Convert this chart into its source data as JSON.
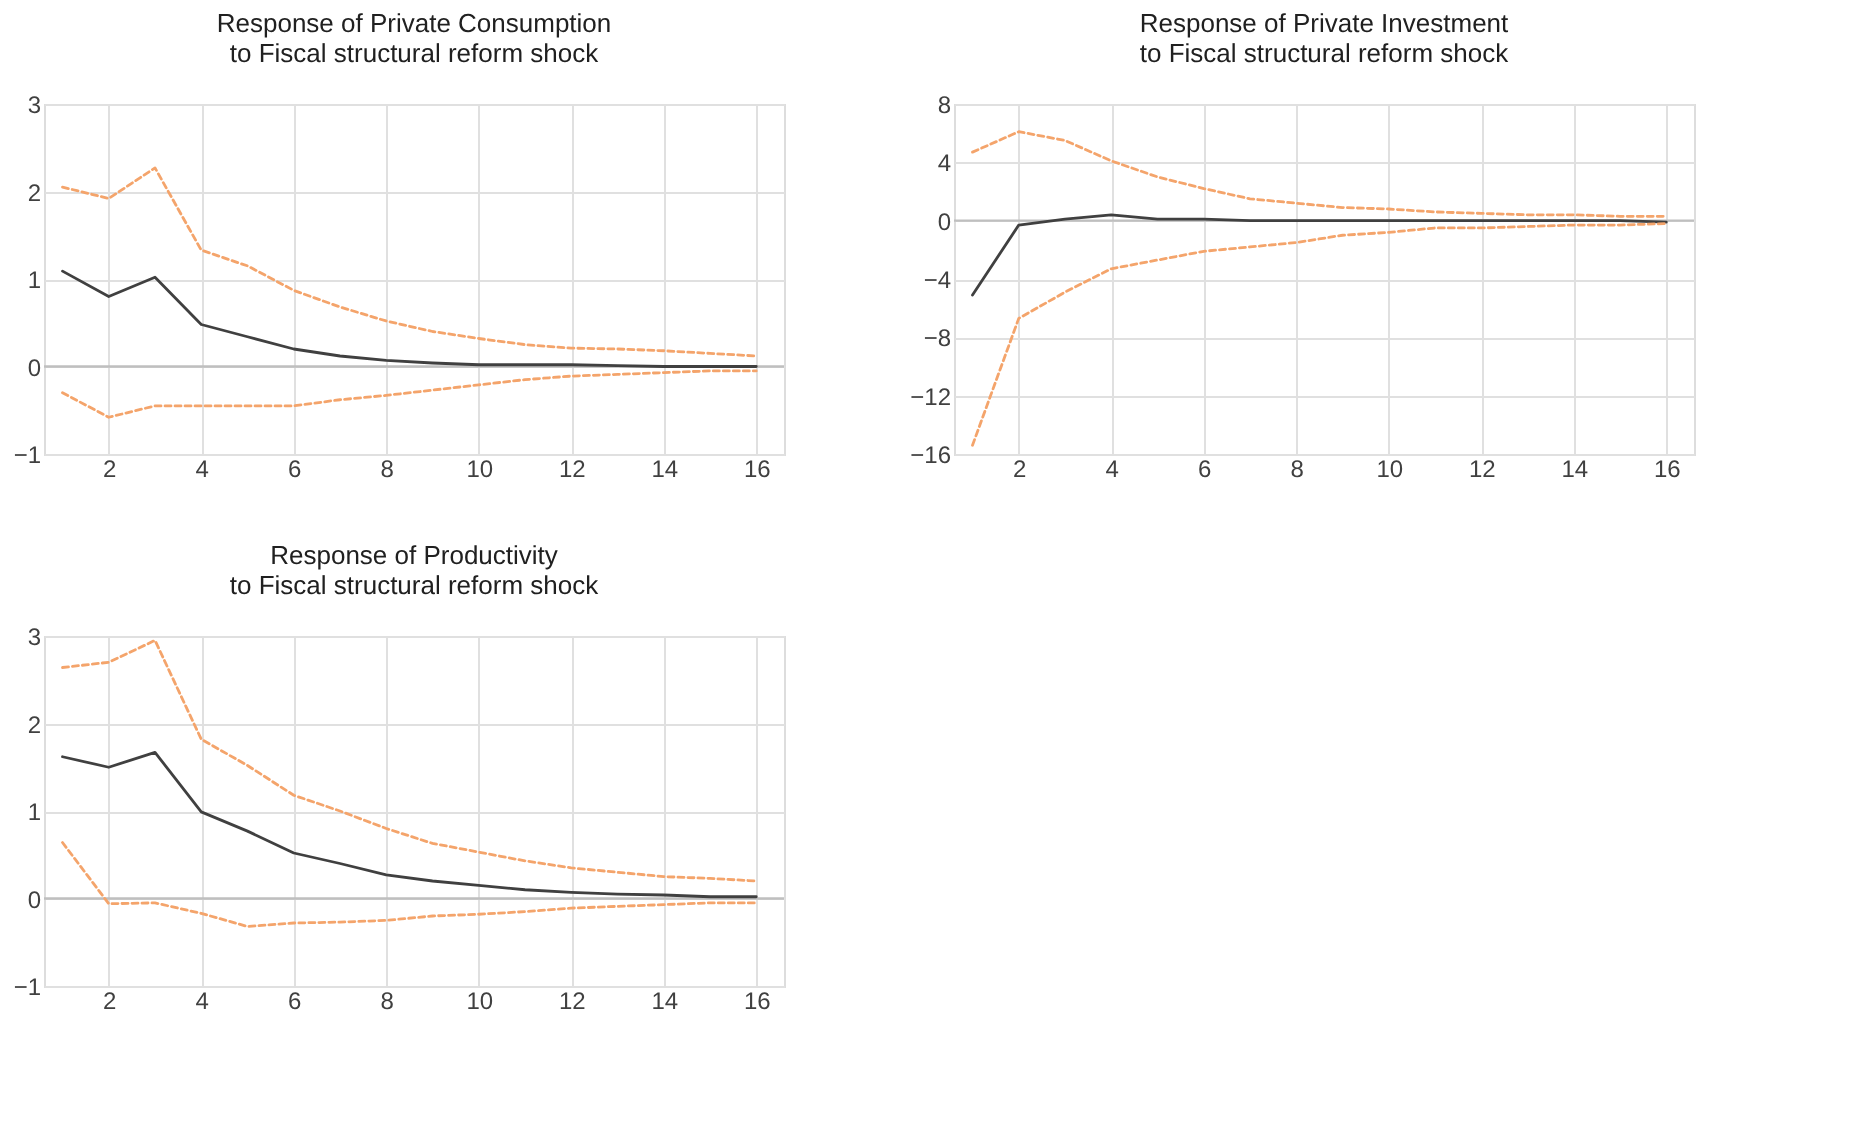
{
  "chart_data": [
    {
      "type": "line",
      "title": "Response of Private Consumption\nto Fiscal structural reform shock",
      "x": [
        1,
        2,
        3,
        4,
        5,
        6,
        7,
        8,
        9,
        10,
        11,
        12,
        13,
        14,
        15,
        16
      ],
      "xlim": [
        0.6,
        16.6
      ],
      "xticks": [
        2,
        4,
        6,
        8,
        10,
        12,
        14,
        16
      ],
      "ylim": [
        -1,
        3
      ],
      "yticks": [
        -1,
        0,
        1,
        2,
        3
      ],
      "grid": true,
      "marker": "none",
      "ref_lines": [
        {
          "axis": "y",
          "value": 0,
          "color": "#bfbfbf"
        }
      ],
      "series": [
        {
          "color": "#f4a46b",
          "line_style": "dashed",
          "values": [
            2.05,
            1.92,
            2.27,
            1.33,
            1.15,
            0.87,
            0.68,
            0.52,
            0.4,
            0.32,
            0.25,
            0.21,
            0.2,
            0.18,
            0.15,
            0.12
          ]
        },
        {
          "color": "#404040",
          "line_style": "solid",
          "values": [
            1.09,
            0.8,
            1.02,
            0.48,
            0.34,
            0.2,
            0.12,
            0.07,
            0.04,
            0.02,
            0.02,
            0.02,
            0.01,
            0.0,
            0.0,
            0.0
          ]
        },
        {
          "color": "#f4a46b",
          "line_style": "dashed",
          "values": [
            -0.3,
            -0.58,
            -0.45,
            -0.45,
            -0.45,
            -0.45,
            -0.38,
            -0.33,
            -0.27,
            -0.21,
            -0.15,
            -0.11,
            -0.09,
            -0.07,
            -0.05,
            -0.05
          ]
        }
      ]
    },
    {
      "type": "line",
      "title": "Response of Private Investment\nto Fiscal structural reform shock",
      "x": [
        1,
        2,
        3,
        4,
        5,
        6,
        7,
        8,
        9,
        10,
        11,
        12,
        13,
        14,
        15,
        16
      ],
      "xlim": [
        0.6,
        16.6
      ],
      "xticks": [
        2,
        4,
        6,
        8,
        10,
        12,
        14,
        16
      ],
      "ylim": [
        -16,
        8
      ],
      "yticks": [
        -16,
        -12,
        -8,
        -4,
        0,
        4,
        8
      ],
      "grid": true,
      "marker": "none",
      "ref_lines": [
        {
          "axis": "y",
          "value": 0,
          "color": "#bfbfbf"
        }
      ],
      "series": [
        {
          "color": "#f4a46b",
          "line_style": "dashed",
          "values": [
            4.7,
            6.1,
            5.5,
            4.1,
            3.0,
            2.2,
            1.5,
            1.2,
            0.9,
            0.8,
            0.6,
            0.5,
            0.4,
            0.4,
            0.3,
            0.3
          ]
        },
        {
          "color": "#404040",
          "line_style": "solid",
          "values": [
            -5.1,
            -0.3,
            0.1,
            0.4,
            0.1,
            0.1,
            0.0,
            0.0,
            0.0,
            0.0,
            0.0,
            0.0,
            0.0,
            0.0,
            0.0,
            -0.1
          ]
        },
        {
          "color": "#f4a46b",
          "line_style": "dashed",
          "values": [
            -15.4,
            -6.7,
            -4.9,
            -3.3,
            -2.7,
            -2.1,
            -1.8,
            -1.5,
            -1.0,
            -0.8,
            -0.5,
            -0.5,
            -0.4,
            -0.3,
            -0.3,
            -0.2
          ]
        }
      ]
    },
    {
      "type": "line",
      "title": "Response of Productivity\nto Fiscal structural reform shock",
      "x": [
        1,
        2,
        3,
        4,
        5,
        6,
        7,
        8,
        9,
        10,
        11,
        12,
        13,
        14,
        15,
        16
      ],
      "xlim": [
        0.6,
        16.6
      ],
      "xticks": [
        2,
        4,
        6,
        8,
        10,
        12,
        14,
        16
      ],
      "ylim": [
        -1,
        3
      ],
      "yticks": [
        -1,
        0,
        1,
        2,
        3
      ],
      "grid": true,
      "marker": "none",
      "ref_lines": [
        {
          "axis": "y",
          "value": 0,
          "color": "#bfbfbf"
        }
      ],
      "series": [
        {
          "color": "#f4a46b",
          "line_style": "dashed",
          "values": [
            2.64,
            2.7,
            2.95,
            1.82,
            1.52,
            1.18,
            1.0,
            0.8,
            0.63,
            0.53,
            0.43,
            0.35,
            0.3,
            0.25,
            0.23,
            0.2
          ]
        },
        {
          "color": "#404040",
          "line_style": "solid",
          "values": [
            1.62,
            1.5,
            1.67,
            0.99,
            0.77,
            0.52,
            0.4,
            0.27,
            0.2,
            0.15,
            0.1,
            0.07,
            0.05,
            0.04,
            0.02,
            0.02
          ]
        },
        {
          "color": "#f4a46b",
          "line_style": "dashed",
          "values": [
            0.64,
            -0.06,
            -0.05,
            -0.17,
            -0.32,
            -0.28,
            -0.27,
            -0.25,
            -0.2,
            -0.18,
            -0.15,
            -0.11,
            -0.09,
            -0.07,
            -0.05,
            -0.05
          ]
        }
      ]
    }
  ]
}
